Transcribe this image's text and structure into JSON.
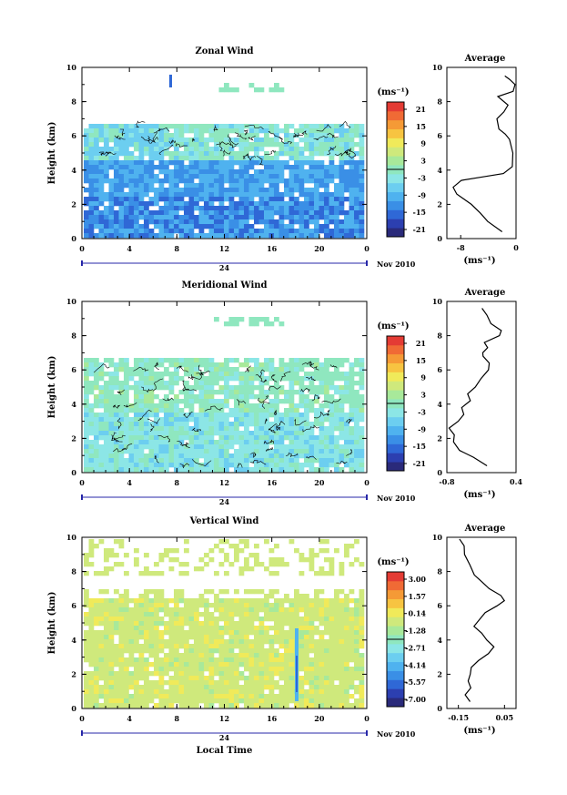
{
  "colors": {
    "scale": [
      "#2a2a7a",
      "#2c3fb0",
      "#2f68d6",
      "#3a8fe6",
      "#4fb2ef",
      "#6ccef0",
      "#8ce6e6",
      "#8fe7bf",
      "#a8e99a",
      "#cfe97c",
      "#f0ea5a",
      "#f7c441",
      "#f59a36",
      "#f06a35",
      "#e43b34"
    ],
    "axis_blue": "#2727a8"
  },
  "panels": [
    {
      "title": "Zonal Wind",
      "ylabel": "Height (km)",
      "yticks": [
        "0",
        "2",
        "4",
        "6",
        "8",
        "10"
      ],
      "xticks": [
        "0",
        "4",
        "8",
        "12",
        "16",
        "20",
        "0"
      ],
      "date_label": "24",
      "month_label": "Nov 2010",
      "colorbar_unit": "(ms⁻¹)",
      "colorbar_ticks": [
        "21",
        "15",
        "9",
        "3",
        "-3",
        "-9",
        "-15",
        "-21"
      ],
      "avg_title": "Average",
      "avg_xticks": [
        "-8",
        "0"
      ],
      "avg_xlabel": "(ms⁻¹)"
    },
    {
      "title": "Meridional Wind",
      "ylabel": "Height (km)",
      "yticks": [
        "0",
        "2",
        "4",
        "6",
        "8",
        "10"
      ],
      "xticks": [
        "0",
        "4",
        "8",
        "12",
        "16",
        "20",
        "0"
      ],
      "date_label": "24",
      "month_label": "Nov 2010",
      "colorbar_unit": "(ms⁻¹)",
      "colorbar_ticks": [
        "21",
        "15",
        "9",
        "3",
        "-3",
        "-9",
        "-15",
        "-21"
      ],
      "avg_title": "Average",
      "avg_xticks": [
        "-0.8",
        "0.4"
      ],
      "avg_xlabel": "(ms⁻¹)"
    },
    {
      "title": "Vertical Wind",
      "ylabel": "Height (km)",
      "yticks": [
        "0",
        "2",
        "4",
        "6",
        "8",
        "10"
      ],
      "xticks": [
        "0",
        "4",
        "8",
        "12",
        "16",
        "20",
        "0"
      ],
      "date_label": "24",
      "month_label": "Nov 2010",
      "colorbar_unit": "(ms⁻¹)",
      "colorbar_ticks": [
        "3.00",
        "1.57",
        "0.14",
        "-1.28",
        "-2.71",
        "-4.14",
        "-5.57",
        "-7.00"
      ],
      "avg_title": "Average",
      "avg_xticks": [
        "-0.15",
        "0.05"
      ],
      "avg_xlabel": "(ms⁻¹)",
      "xlabel": "Local Time"
    }
  ],
  "chart_data": [
    {
      "type": "heatmap",
      "title": "Zonal Wind",
      "ylabel": "Height (km)",
      "x_range_hours": [
        0,
        24
      ],
      "ylim": [
        0,
        10
      ],
      "color_range": [
        -21,
        21
      ],
      "description_bands": [
        {
          "height_km": [
            0.3,
            2.5
          ],
          "value": -12
        },
        {
          "height_km": [
            2.5,
            4.8
          ],
          "value": -9
        },
        {
          "height_km": [
            4.8,
            6.8
          ],
          "value": 3
        }
      ]
    },
    {
      "type": "line",
      "title": "Average",
      "xlabel": "(ms⁻¹)",
      "ylabel": "Height (km)",
      "xlim": [
        -10,
        0
      ],
      "ylim": [
        0,
        10
      ],
      "x": [
        -2,
        -4,
        -5,
        -6.5,
        -8.5,
        -9,
        -8,
        -5,
        -2,
        -0.5,
        -0.3,
        -0.8,
        -1.5,
        -2.5,
        -2.8,
        -1.8,
        -1.2,
        -2.5,
        -0.6,
        -0.3,
        -1.0,
        -1.5
      ],
      "y": [
        0.4,
        1.0,
        1.5,
        2.0,
        2.6,
        3.0,
        3.4,
        3.6,
        3.8,
        4.2,
        5.0,
        5.8,
        6.1,
        6.4,
        7.0,
        7.4,
        7.8,
        8.3,
        8.6,
        9.0,
        9.3,
        9.5
      ]
    },
    {
      "type": "heatmap",
      "title": "Meridional Wind",
      "ylabel": "Height (km)",
      "x_range_hours": [
        0,
        24
      ],
      "ylim": [
        0,
        10
      ],
      "color_range": [
        -21,
        21
      ],
      "description_bands": [
        {
          "height_km": [
            0.3,
            3.5
          ],
          "value": -6
        },
        {
          "height_km": [
            3.5,
            6.8
          ],
          "value": 1
        }
      ]
    },
    {
      "type": "line",
      "title": "Average",
      "xlabel": "(ms⁻¹)",
      "ylabel": "Height (km)",
      "xlim": [
        -0.8,
        0.4
      ],
      "ylim": [
        0,
        10
      ],
      "x": [
        -0.1,
        -0.35,
        -0.6,
        -0.7,
        -0.65,
        -0.75,
        -0.6,
        -0.5,
        -0.55,
        -0.4,
        -0.45,
        -0.3,
        -0.2,
        -0.1,
        -0.05,
        -0.15,
        -0.2,
        -0.1,
        -0.15,
        0.1,
        0.15,
        -0.05,
        -0.1,
        -0.2
      ],
      "y": [
        0.4,
        0.9,
        1.3,
        1.8,
        2.2,
        2.6,
        3.0,
        3.4,
        3.8,
        4.2,
        4.6,
        5.0,
        5.5,
        6.0,
        6.4,
        6.8,
        7.0,
        7.3,
        7.6,
        8.0,
        8.3,
        8.7,
        9.2,
        9.6
      ]
    },
    {
      "type": "heatmap",
      "title": "Vertical Wind",
      "ylabel": "Height (km)",
      "xlabel": "Local Time",
      "x_range_hours": [
        0,
        24
      ],
      "ylim": [
        0,
        10
      ],
      "color_range": [
        -7.0,
        3.0
      ],
      "description_bands": [
        {
          "height_km": [
            0.3,
            6.5
          ],
          "value": 0.14
        }
      ]
    },
    {
      "type": "line",
      "title": "Average",
      "xlabel": "(ms⁻¹)",
      "ylabel": "Height (km)",
      "xlim": [
        -0.2,
        0.1
      ],
      "ylim": [
        0,
        10
      ],
      "x": [
        -0.1,
        -0.12,
        -0.1,
        -0.11,
        -0.1,
        -0.09,
        -0.06,
        -0.02,
        0.0,
        -0.03,
        -0.05,
        -0.08,
        -0.06,
        -0.03,
        0.02,
        0.05,
        0.03,
        -0.02,
        -0.05,
        -0.08,
        -0.1,
        -0.12,
        -0.13,
        -0.15
      ],
      "y": [
        0.4,
        0.8,
        1.2,
        1.6,
        2.0,
        2.4,
        2.8,
        3.2,
        3.6,
        4.0,
        4.4,
        4.8,
        5.2,
        5.6,
        6.0,
        6.3,
        6.6,
        7.0,
        7.4,
        7.8,
        8.4,
        9.0,
        9.5,
        9.9
      ]
    }
  ]
}
